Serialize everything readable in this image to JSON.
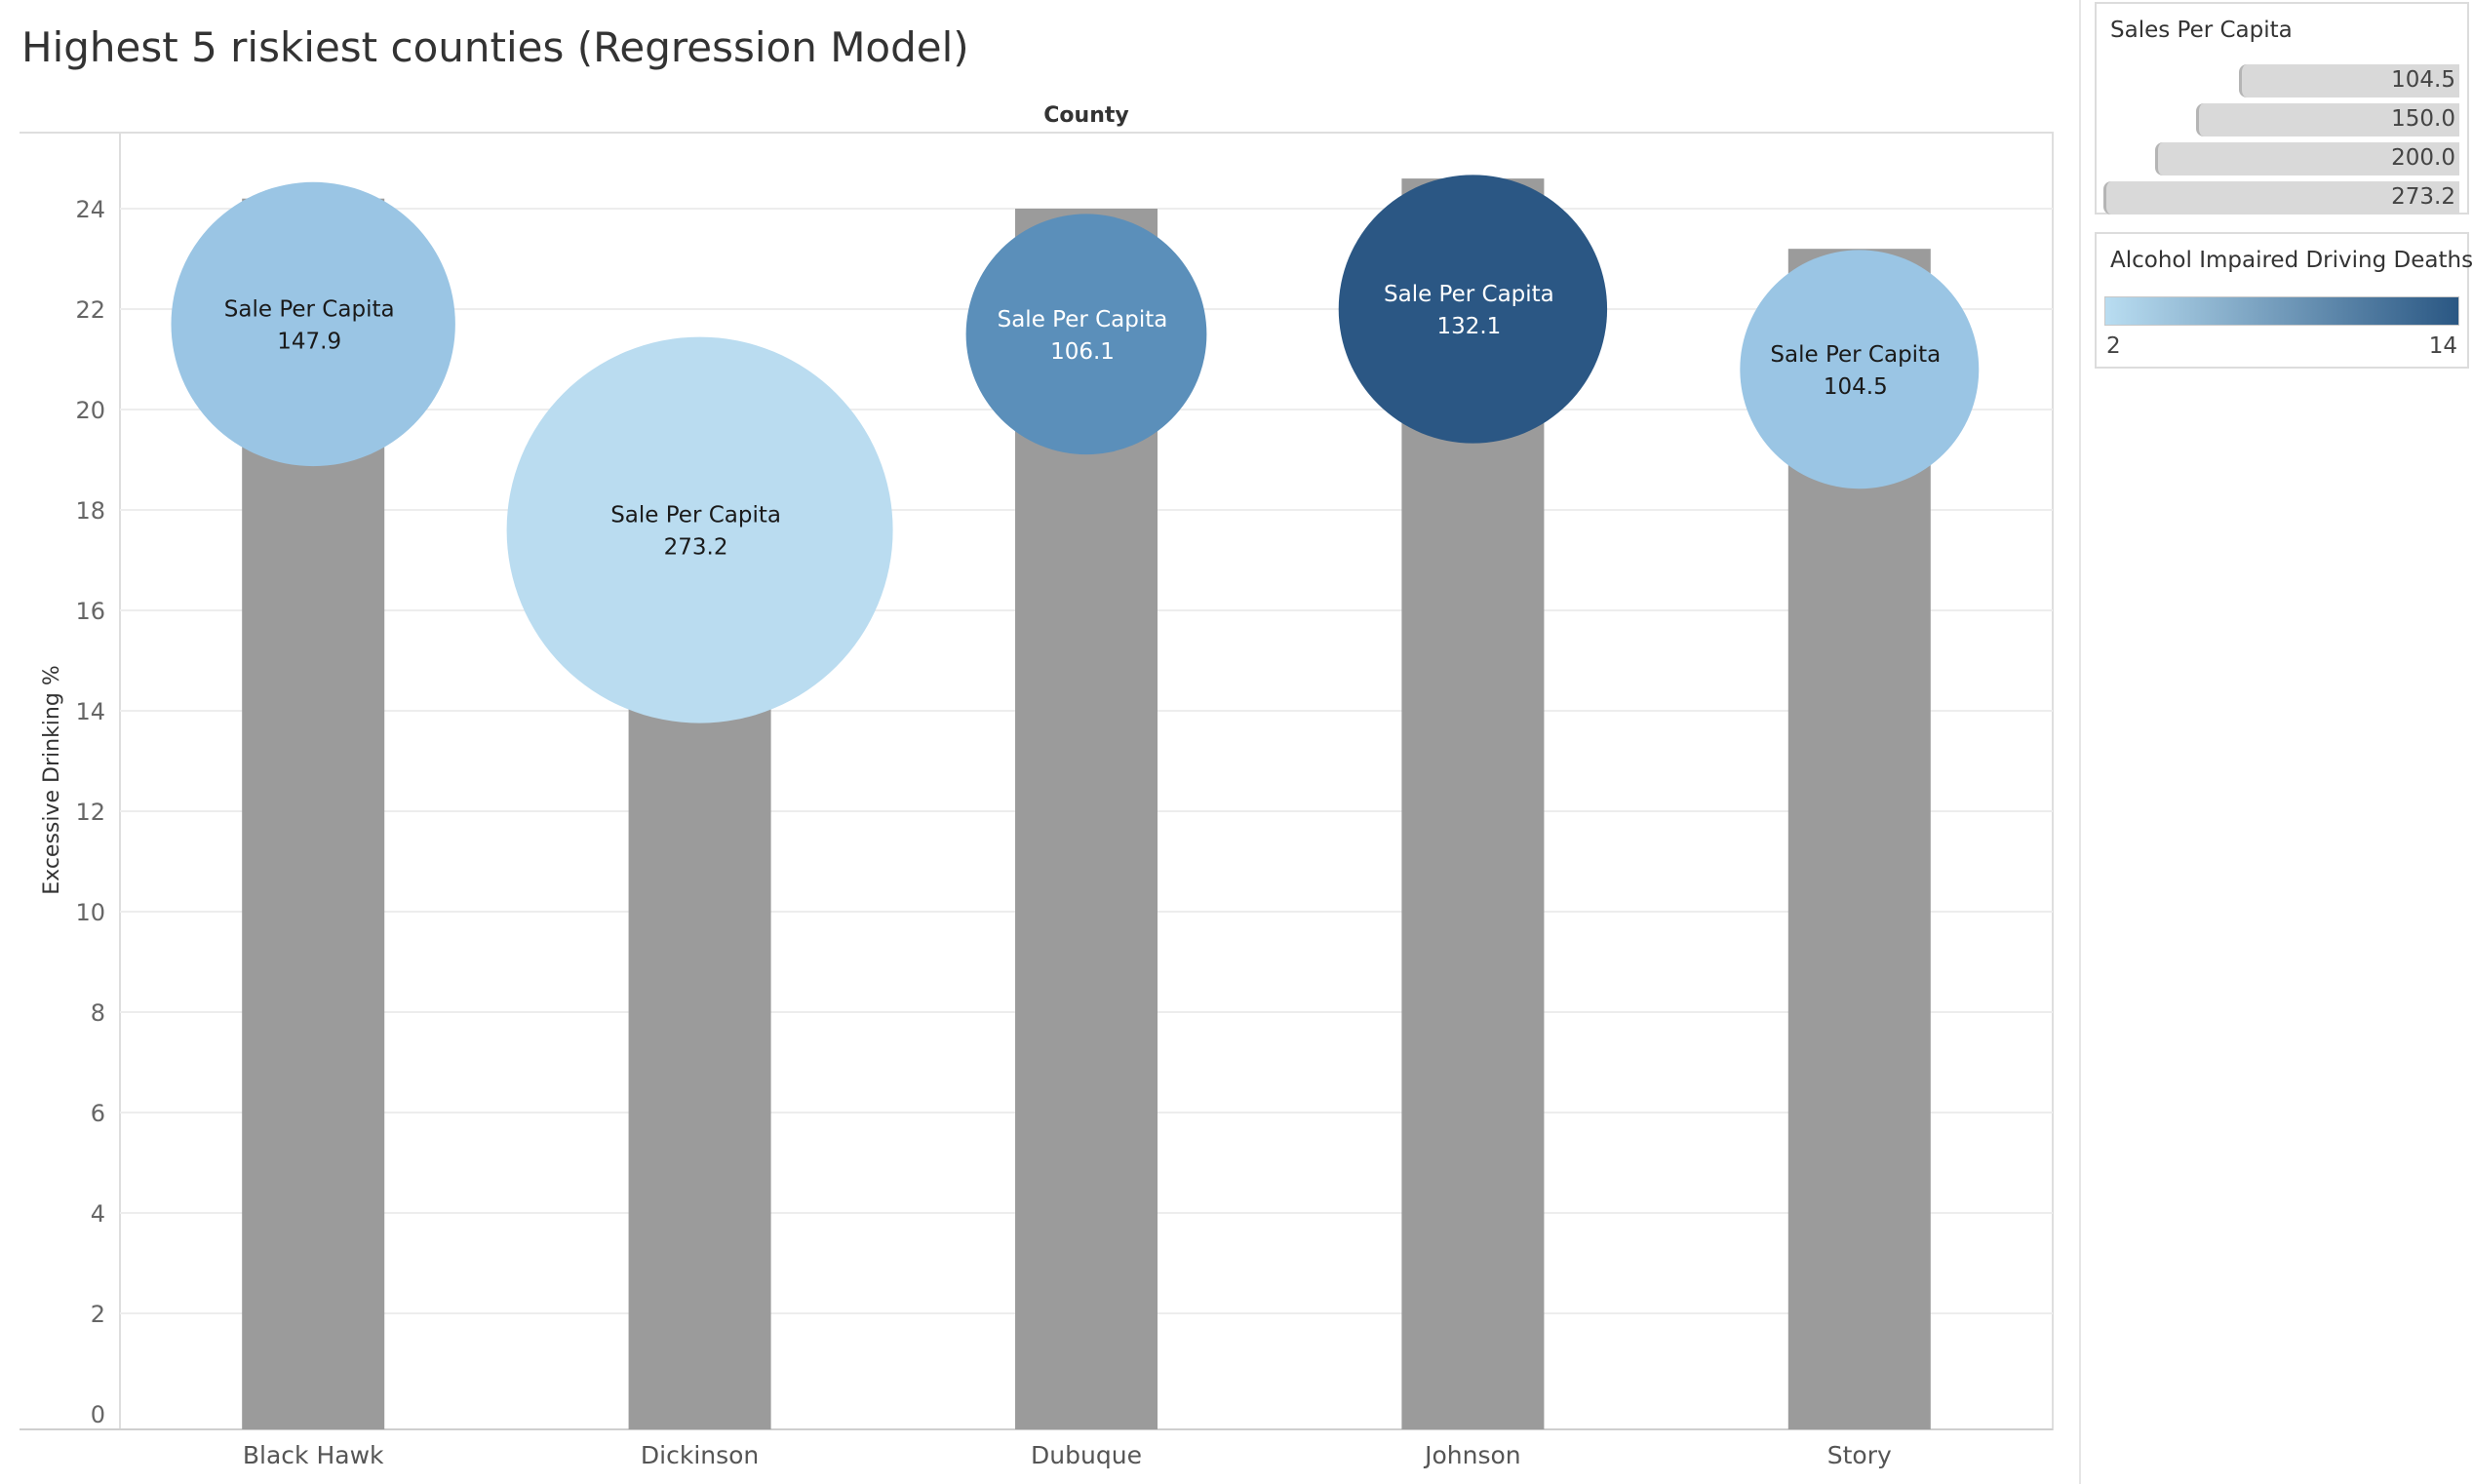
{
  "title": "Highest 5 riskiest counties (Regression Model)",
  "chart_data": {
    "type": "bar",
    "title": "Highest 5 riskiest counties (Regression Model)",
    "top_axis_label": "County",
    "xlabel": "",
    "ylabel": "Excessive Drinking %",
    "ylim": [
      0,
      25.6
    ],
    "yticks": [
      0,
      2,
      4,
      6,
      8,
      10,
      12,
      14,
      16,
      18,
      20,
      22,
      24
    ],
    "grid": true,
    "categories": [
      "Black Hawk",
      "Dickinson",
      "Dubuque",
      "Johnson",
      "Story"
    ],
    "bar_values": [
      24.2,
      14.3,
      24.0,
      24.6,
      23.2
    ],
    "bar_color": "#9b9b9b",
    "bubble_label": "Sale Per Capita",
    "bubbles": [
      {
        "category": "Black Hawk",
        "y": 21.7,
        "sales_per_capita": 147.9,
        "sales_per_capita_label": "147.9",
        "color": "#9ac5e4",
        "text_color": "#1a1a1a"
      },
      {
        "category": "Dickinson",
        "y": 17.6,
        "sales_per_capita": 273.2,
        "sales_per_capita_label": "273.2",
        "color": "#badcf0",
        "text_color": "#1a1a1a"
      },
      {
        "category": "Dubuque",
        "y": 21.5,
        "sales_per_capita": 106.1,
        "sales_per_capita_label": "106.1",
        "color": "#5b8fba",
        "text_color": "#ffffff"
      },
      {
        "category": "Johnson",
        "y": 22.0,
        "sales_per_capita": 132.1,
        "sales_per_capita_label": "132.1",
        "color": "#2b5784",
        "text_color": "#ffffff"
      },
      {
        "category": "Story",
        "y": 20.8,
        "sales_per_capita": 104.5,
        "sales_per_capita_label": "104.5",
        "color": "#9ac5e4",
        "text_color": "#1a1a1a"
      }
    ]
  },
  "size_legend": {
    "title": "Sales Per Capita",
    "items": [
      {
        "label": "104.5",
        "value": 104.5
      },
      {
        "label": "150.0",
        "value": 150.0
      },
      {
        "label": "200.0",
        "value": 200.0
      },
      {
        "label": "273.2",
        "value": 273.2
      }
    ]
  },
  "color_legend": {
    "title": "Alcohol Impaired Driving Deaths",
    "min_label": "2",
    "max_label": "14",
    "min_color": "#b9ddf1",
    "max_color": "#2a5783"
  }
}
